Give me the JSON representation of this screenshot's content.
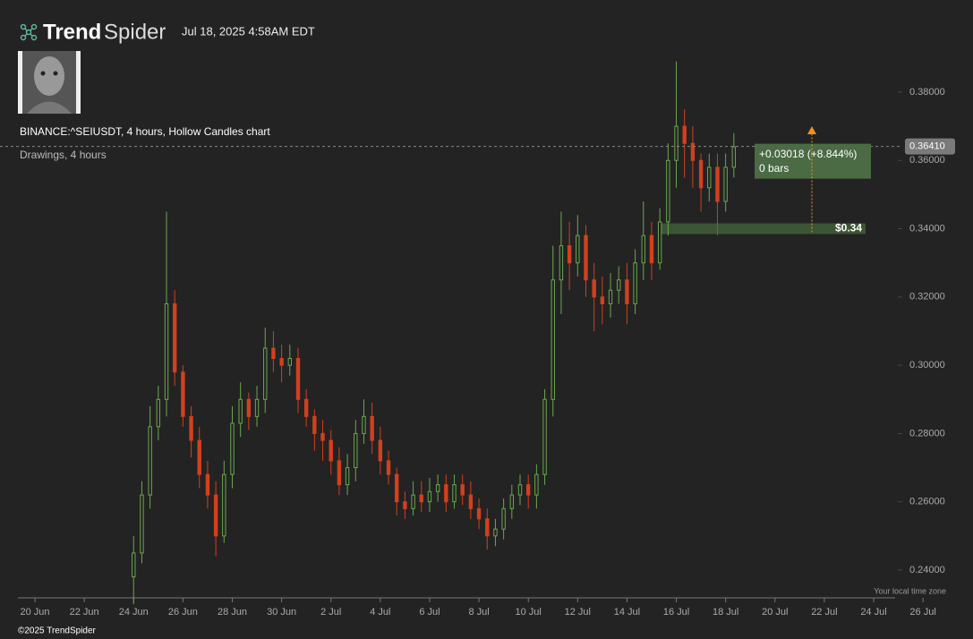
{
  "header": {
    "brand": {
      "bold": "Trend",
      "light": "Spider"
    },
    "timestamp": "Jul 18, 2025 4:58AM EDT",
    "symbol_line": "BINANCE:^SEIUSDT, 4 hours, Hollow Candles chart",
    "drawings_line": "Drawings, 4 hours"
  },
  "footer": {
    "copyright": "©2025 TrendSpider",
    "timezone_note": "Your local time zone"
  },
  "chart_data": {
    "type": "candlestick",
    "colors": {
      "up": "#6aa84f",
      "down": "#d2401e"
    },
    "grid": false,
    "x": [
      96,
      104,
      112,
      120,
      128,
      136,
      144,
      152,
      160,
      168,
      176,
      184,
      192,
      200,
      208,
      216,
      224,
      232,
      240,
      248,
      256,
      264,
      272,
      280,
      288,
      296,
      304,
      312,
      320,
      328,
      336,
      344,
      352,
      360,
      368,
      376,
      384,
      392,
      400,
      408,
      416,
      424,
      432,
      440,
      448,
      456,
      464,
      472,
      480,
      488,
      496,
      504,
      512,
      520,
      528,
      536,
      544,
      552,
      560,
      568,
      576,
      584,
      592,
      600,
      608,
      616,
      624,
      632,
      640,
      648,
      656,
      664,
      672,
      680
    ],
    "open": [
      0.238,
      0.245,
      0.262,
      0.282,
      0.29,
      0.318,
      0.298,
      0.285,
      0.278,
      0.268,
      0.262,
      0.25,
      0.268,
      0.283,
      0.29,
      0.285,
      0.29,
      0.305,
      0.302,
      0.3,
      0.302,
      0.29,
      0.285,
      0.28,
      0.278,
      0.272,
      0.265,
      0.27,
      0.28,
      0.285,
      0.278,
      0.272,
      0.268,
      0.26,
      0.258,
      0.262,
      0.26,
      0.263,
      0.265,
      0.26,
      0.265,
      0.262,
      0.258,
      0.255,
      0.25,
      0.252,
      0.258,
      0.262,
      0.265,
      0.262,
      0.268,
      0.29,
      0.325,
      0.335,
      0.33,
      0.338,
      0.325,
      0.32,
      0.318,
      0.322,
      0.325,
      0.318,
      0.33,
      0.338,
      0.33,
      0.342,
      0.36,
      0.37,
      0.365,
      0.36,
      0.352,
      0.358,
      0.348,
      0.358
    ],
    "high": [
      0.25,
      0.266,
      0.288,
      0.294,
      0.345,
      0.322,
      0.3,
      0.288,
      0.282,
      0.272,
      0.266,
      0.272,
      0.288,
      0.295,
      0.292,
      0.294,
      0.311,
      0.31,
      0.306,
      0.306,
      0.305,
      0.293,
      0.287,
      0.284,
      0.281,
      0.276,
      0.274,
      0.284,
      0.29,
      0.289,
      0.282,
      0.275,
      0.27,
      0.263,
      0.266,
      0.266,
      0.267,
      0.268,
      0.268,
      0.268,
      0.268,
      0.266,
      0.261,
      0.258,
      0.255,
      0.261,
      0.265,
      0.268,
      0.268,
      0.271,
      0.293,
      0.335,
      0.345,
      0.342,
      0.344,
      0.341,
      0.33,
      0.326,
      0.327,
      0.329,
      0.33,
      0.334,
      0.348,
      0.342,
      0.346,
      0.365,
      0.389,
      0.375,
      0.37,
      0.362,
      0.362,
      0.362,
      0.362,
      0.368
    ],
    "low": [
      0.23,
      0.242,
      0.258,
      0.278,
      0.285,
      0.294,
      0.282,
      0.273,
      0.264,
      0.258,
      0.244,
      0.248,
      0.264,
      0.279,
      0.281,
      0.282,
      0.286,
      0.298,
      0.295,
      0.297,
      0.286,
      0.282,
      0.275,
      0.272,
      0.268,
      0.262,
      0.262,
      0.266,
      0.277,
      0.274,
      0.268,
      0.265,
      0.256,
      0.255,
      0.256,
      0.257,
      0.257,
      0.26,
      0.257,
      0.258,
      0.259,
      0.255,
      0.252,
      0.246,
      0.247,
      0.249,
      0.255,
      0.259,
      0.258,
      0.258,
      0.265,
      0.285,
      0.315,
      0.322,
      0.326,
      0.32,
      0.31,
      0.312,
      0.314,
      0.318,
      0.312,
      0.315,
      0.325,
      0.325,
      0.328,
      0.338,
      0.352,
      0.355,
      0.352,
      0.345,
      0.348,
      0.338,
      0.345,
      0.355
    ],
    "close": [
      0.245,
      0.262,
      0.282,
      0.29,
      0.318,
      0.298,
      0.285,
      0.278,
      0.268,
      0.262,
      0.25,
      0.268,
      0.283,
      0.29,
      0.285,
      0.29,
      0.305,
      0.302,
      0.3,
      0.302,
      0.29,
      0.285,
      0.28,
      0.278,
      0.272,
      0.265,
      0.27,
      0.28,
      0.285,
      0.278,
      0.272,
      0.268,
      0.26,
      0.258,
      0.262,
      0.26,
      0.263,
      0.265,
      0.26,
      0.265,
      0.262,
      0.258,
      0.255,
      0.25,
      0.252,
      0.258,
      0.262,
      0.265,
      0.262,
      0.268,
      0.29,
      0.325,
      0.335,
      0.33,
      0.338,
      0.325,
      0.32,
      0.318,
      0.322,
      0.325,
      0.318,
      0.33,
      0.338,
      0.33,
      0.342,
      0.36,
      0.37,
      0.365,
      0.36,
      0.352,
      0.358,
      0.348,
      0.358,
      0.364
    ],
    "xlim": [
      -34,
      870
    ],
    "ylim": [
      0.2325,
      0.3925
    ],
    "xticks": [
      {
        "value": 0,
        "label": "20 Jun"
      },
      {
        "value": 48,
        "label": "22 Jun"
      },
      {
        "value": 96,
        "label": "24 Jun"
      },
      {
        "value": 144,
        "label": "26 Jun"
      },
      {
        "value": 192,
        "label": "28 Jun"
      },
      {
        "value": 240,
        "label": "30 Jun"
      },
      {
        "value": 288,
        "label": "2 Jul"
      },
      {
        "value": 336,
        "label": "4 Jul"
      },
      {
        "value": 384,
        "label": "6 Jul"
      },
      {
        "value": 432,
        "label": "8 Jul"
      },
      {
        "value": 480,
        "label": "10 Jul"
      },
      {
        "value": 528,
        "label": "12 Jul"
      },
      {
        "value": 576,
        "label": "14 Jul"
      },
      {
        "value": 624,
        "label": "16 Jul"
      },
      {
        "value": 672,
        "label": "18 Jul"
      },
      {
        "value": 720,
        "label": "20 Jul"
      },
      {
        "value": 768,
        "label": "22 Jul"
      },
      {
        "value": 816,
        "label": "24 Jul"
      },
      {
        "value": 864,
        "label": "26 Jul"
      }
    ],
    "yticks": [
      {
        "value": 0.24,
        "label": "0.24000"
      },
      {
        "value": 0.26,
        "label": "0.26000"
      },
      {
        "value": 0.28,
        "label": "0.28000"
      },
      {
        "value": 0.3,
        "label": "0.30000"
      },
      {
        "value": 0.32,
        "label": "0.32000"
      },
      {
        "value": 0.34,
        "label": "0.34000"
      },
      {
        "value": 0.36,
        "label": "0.36000"
      },
      {
        "value": 0.38,
        "label": "0.38000"
      }
    ],
    "last_price": {
      "value": 0.3641,
      "label": "0.36410"
    },
    "level": {
      "value": 0.34,
      "label": "$0.34"
    },
    "measure": {
      "change": "+0.03018 (+8.844%)",
      "bars": "0 bars"
    }
  }
}
